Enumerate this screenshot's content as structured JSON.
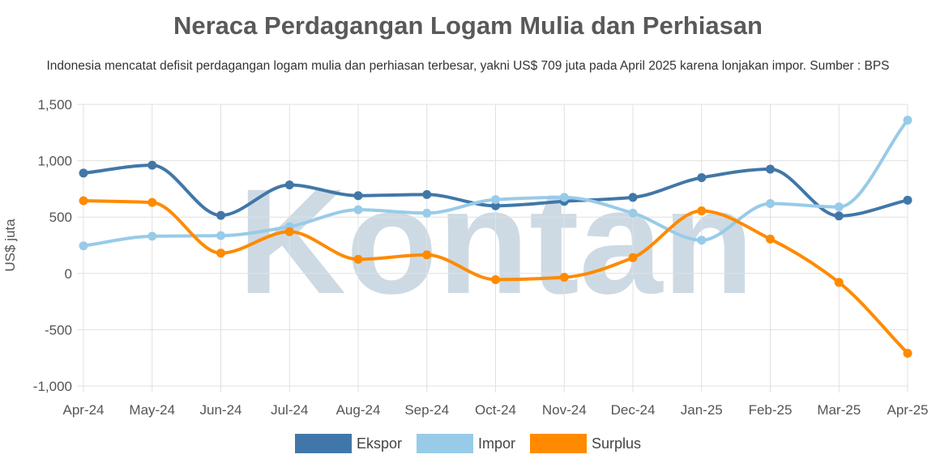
{
  "chart_data": {
    "type": "line",
    "title": "Neraca Perdagangan Logam Mulia dan Perhiasan",
    "subtitle": "Indonesia mencatat defisit perdagangan logam mulia dan perhiasan terbesar, yakni US$ 709 juta pada April 2025 karena lonjakan impor. Sumber : BPS",
    "ylabel": "US$ juta",
    "xlabel": "",
    "ylim": [
      -1000,
      1500
    ],
    "yticks": [
      -1000,
      -500,
      0,
      500,
      1000,
      1500
    ],
    "ytick_labels": [
      "-1,000",
      "-500",
      "0",
      "500",
      "1,000",
      "1,500"
    ],
    "categories": [
      "Apr-24",
      "May-24",
      "Jun-24",
      "Jul-24",
      "Aug-24",
      "Sep-24",
      "Oct-24",
      "Nov-24",
      "Dec-24",
      "Jan-25",
      "Feb-25",
      "Mar-25",
      "Apr-25"
    ],
    "grid": true,
    "legend_position": "bottom",
    "series": [
      {
        "name": "Ekspor",
        "color": "#4177a8",
        "values": [
          890,
          960,
          515,
          785,
          690,
          700,
          600,
          640,
          675,
          850,
          925,
          510,
          650
        ]
      },
      {
        "name": "Impor",
        "color": "#98cbe8",
        "values": [
          245,
          330,
          335,
          415,
          565,
          535,
          655,
          675,
          535,
          295,
          620,
          590,
          1360
        ]
      },
      {
        "name": "Surplus",
        "color": "#ff8a00",
        "values": [
          645,
          630,
          180,
          370,
          125,
          165,
          -55,
          -35,
          140,
          555,
          305,
          -80,
          -709
        ]
      }
    ]
  },
  "watermark": {
    "text": "Kontan",
    "color": "#c5d4e0"
  }
}
